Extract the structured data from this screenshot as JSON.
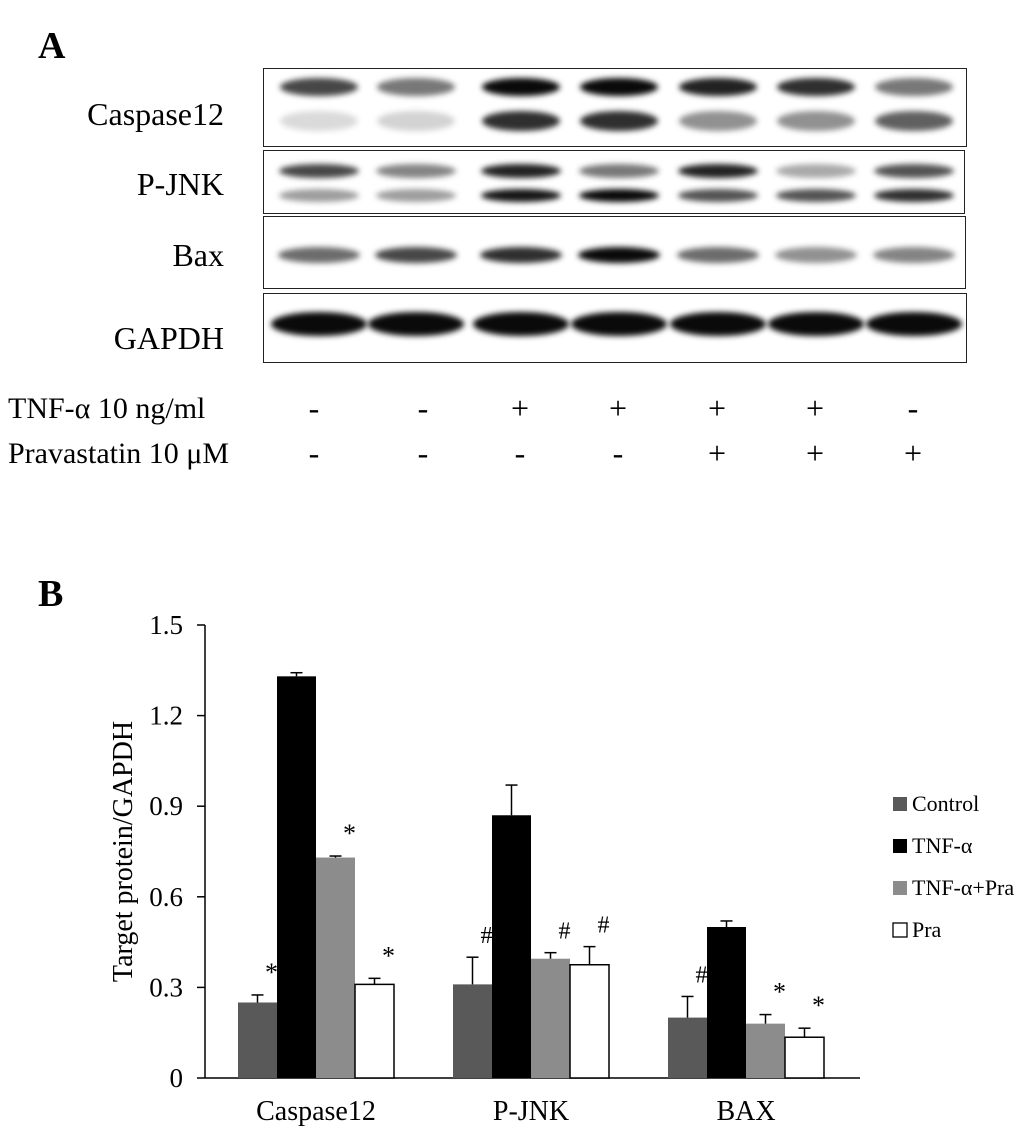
{
  "panel_a": {
    "letter": "A",
    "rows": [
      {
        "label": "Caspase12"
      },
      {
        "label": "P-JNK"
      },
      {
        "label": "Bax"
      },
      {
        "label": "GAPDH"
      }
    ],
    "treatments": [
      {
        "label": "TNF-α 10 ng/ml",
        "signs": [
          "-",
          "-",
          "+",
          "+",
          "+",
          "+",
          "-"
        ]
      },
      {
        "label": "Pravastatin 10 μM",
        "signs": [
          "-",
          "-",
          "-",
          "-",
          "+",
          "+",
          "+"
        ]
      }
    ]
  },
  "panel_b": {
    "letter": "B"
  },
  "chart_data": {
    "type": "bar",
    "ylabel": "Target protein/GAPDH",
    "xlabel": "",
    "ylim": [
      0,
      1.5
    ],
    "yticks": [
      "0",
      "0.3",
      "0.6",
      "0.9",
      "1.2",
      "1.5"
    ],
    "categories": [
      "Caspase12",
      "P-JNK",
      "BAX"
    ],
    "legend_position": "right",
    "grid": false,
    "series": [
      {
        "name": "Control",
        "color": "#595959",
        "values": [
          0.25,
          0.31,
          0.2
        ],
        "errors": [
          0.025,
          0.09,
          0.07
        ],
        "marks": [
          "*",
          "#",
          "#"
        ]
      },
      {
        "name": "TNF-α",
        "color": "#000000",
        "values": [
          1.33,
          0.87,
          0.5
        ],
        "errors": [
          0.012,
          0.1,
          0.02
        ],
        "marks": [
          "",
          "",
          ""
        ]
      },
      {
        "name": "TNF-α+Pra",
        "color": "#8c8c8c",
        "values": [
          0.73,
          0.395,
          0.18
        ],
        "errors": [
          0.005,
          0.02,
          0.03
        ],
        "marks": [
          "*",
          "#",
          "*"
        ]
      },
      {
        "name": "Pra",
        "color": "#ffffff",
        "values": [
          0.31,
          0.375,
          0.135
        ],
        "errors": [
          0.02,
          0.06,
          0.03
        ],
        "marks": [
          "*",
          "#",
          "*"
        ]
      }
    ]
  }
}
